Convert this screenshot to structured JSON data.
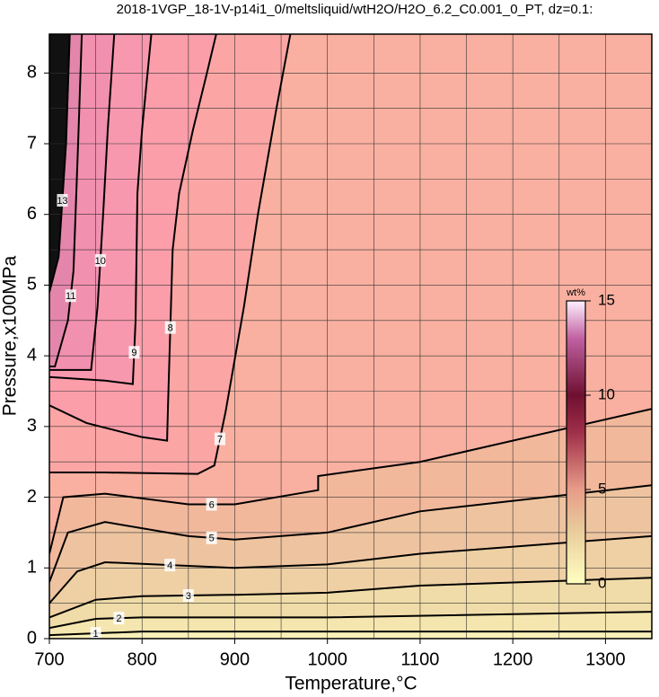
{
  "chart_data": {
    "type": "contour",
    "title": "2018-1VGP_18-1V-p14i1_0/meltsliquid/wtH2O/H2O_6.2_C0.001_0_PT, dz=0.1:",
    "xlabel": "Temperature,°C",
    "ylabel": "Pressure,x100MPa",
    "xlim": [
      700,
      1350
    ],
    "ylim": [
      0,
      8.55
    ],
    "xticks": [
      700,
      800,
      900,
      1000,
      1100,
      1200,
      1300
    ],
    "yticks": [
      0,
      1,
      2,
      3,
      4,
      5,
      6,
      7,
      8
    ],
    "xgrid": [
      750,
      850,
      950,
      1050,
      1150,
      1250
    ],
    "ygrid": [
      0.5,
      1.5,
      2.5,
      3.5,
      4.5,
      5.5,
      6.5,
      7.5
    ],
    "background": "#f9b0a0",
    "contours": [
      {
        "level": 7,
        "side": "left",
        "fill": "#fba6a4",
        "x": [
          700,
          760,
          860,
          878,
          890,
          910,
          925,
          945,
          960
        ],
        "y": [
          2.35,
          2.35,
          2.33,
          2.45,
          3.2,
          4.7,
          6.0,
          7.5,
          8.55
        ]
      },
      {
        "level": 8,
        "side": "left",
        "fill": "#fb9eaa",
        "x": [
          700,
          740,
          800,
          827,
          828,
          833,
          840,
          855,
          870,
          880
        ],
        "y": [
          3.3,
          3.05,
          2.85,
          2.8,
          3.3,
          5.5,
          6.3,
          7.2,
          8.0,
          8.55
        ]
      },
      {
        "level": 9,
        "side": "left",
        "fill": "#f898ae",
        "x": [
          700,
          760,
          790,
          793,
          795,
          800,
          810
        ],
        "y": [
          3.7,
          3.65,
          3.6,
          4.5,
          6.3,
          7.2,
          8.55
        ]
      },
      {
        "level": 10,
        "side": "left",
        "fill": "#f290b0",
        "x": [
          700,
          745,
          752,
          758,
          763,
          770
        ],
        "y": [
          3.8,
          3.8,
          4.7,
          6.0,
          7.2,
          8.55
        ]
      },
      {
        "level": 11,
        "side": "left",
        "fill": "#e486ac",
        "x": [
          700,
          706,
          720,
          726,
          731,
          735
        ],
        "y": [
          3.85,
          3.85,
          4.5,
          5.2,
          7.0,
          8.55
        ]
      },
      {
        "level": 13,
        "side": "left",
        "fill": "#111111",
        "x": [
          700,
          710,
          718,
          722
        ],
        "y": [
          4.9,
          5.4,
          7.0,
          8.55
        ]
      },
      {
        "level": 6,
        "side": "below",
        "fill": "#f2b89c",
        "x": [
          700,
          715,
          760,
          850,
          900,
          990,
          990,
          1100,
          1350
        ],
        "y": [
          1.2,
          2.0,
          2.05,
          1.9,
          1.9,
          2.1,
          2.3,
          2.5,
          3.25
        ]
      },
      {
        "level": 5,
        "side": "below",
        "fill": "#eec4a0",
        "x": [
          700,
          720,
          760,
          850,
          900,
          1000,
          1100,
          1350
        ],
        "y": [
          0.8,
          1.5,
          1.65,
          1.45,
          1.4,
          1.5,
          1.8,
          2.17
        ]
      },
      {
        "level": 4,
        "side": "below",
        "fill": "#eed0a4",
        "x": [
          700,
          730,
          760,
          900,
          1000,
          1100,
          1350
        ],
        "y": [
          0.5,
          0.95,
          1.08,
          1.0,
          1.05,
          1.2,
          1.45
        ]
      },
      {
        "level": 3,
        "side": "below",
        "fill": "#f0dca8",
        "x": [
          700,
          750,
          800,
          900,
          1000,
          1100,
          1350
        ],
        "y": [
          0.3,
          0.55,
          0.6,
          0.62,
          0.65,
          0.75,
          0.86
        ]
      },
      {
        "level": 2,
        "side": "below",
        "fill": "#f4e6ae",
        "x": [
          700,
          750,
          800,
          1000,
          1350
        ],
        "y": [
          0.15,
          0.28,
          0.3,
          0.3,
          0.38
        ]
      },
      {
        "level": 1,
        "side": "below",
        "fill": "#f8f0b8",
        "x": [
          700,
          800,
          1350
        ],
        "y": [
          0.05,
          0.1,
          0.1
        ]
      }
    ],
    "colorbar": {
      "label": "wt%",
      "lim": [
        0,
        15
      ],
      "ticks": [
        0,
        5,
        10,
        15
      ],
      "colormap": [
        {
          "value": 0,
          "color": "#ffffc0"
        },
        {
          "value": 3,
          "color": "#e8c89a"
        },
        {
          "value": 5,
          "color": "#e89c88"
        },
        {
          "value": 8,
          "color": "#a0304a"
        },
        {
          "value": 10,
          "color": "#6e1030"
        },
        {
          "value": 13,
          "color": "#c060a0"
        },
        {
          "value": 15,
          "color": "#fff0ff"
        }
      ]
    }
  }
}
